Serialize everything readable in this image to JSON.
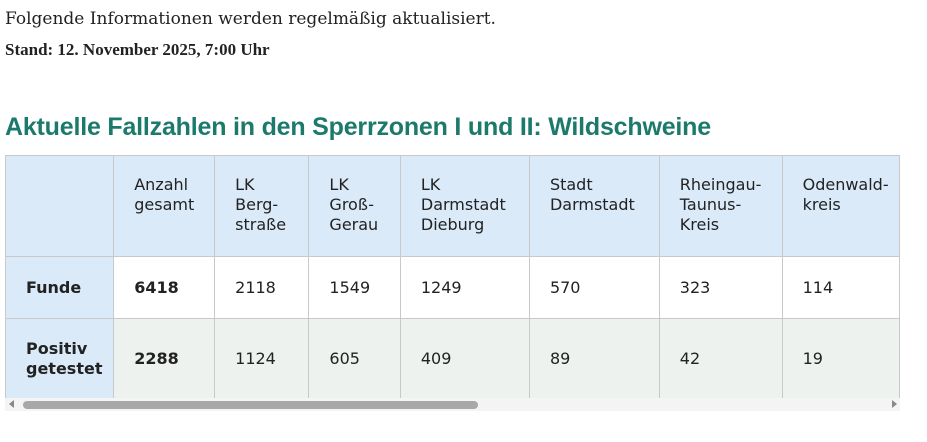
{
  "intro": "Folgende Informationen werden regelmäßig aktualisiert.",
  "stand": "Stand: 12. November 2025, 7:00 Uhr",
  "heading": "Aktuelle Fallzahlen in den Sperrzonen I und II: Wildschweine",
  "table": {
    "header": [
      "Anzahl\ngesamt",
      "LK\nBerg-\nstraße",
      "LK\nGroß-\nGerau",
      "LK\nDarmstadt\nDieburg",
      "Stadt\nDarmstadt",
      "Rheingau-\nTaunus-\nKreis",
      "Odenwald-\nkreis"
    ],
    "rows": [
      [
        "Funde",
        "6418",
        "2118",
        "1549",
        "1249",
        "570",
        "323",
        "114"
      ],
      [
        "Positiv\ngetestet",
        "2288",
        "1124",
        "605",
        "409",
        "89",
        "42",
        "19"
      ]
    ]
  }
}
